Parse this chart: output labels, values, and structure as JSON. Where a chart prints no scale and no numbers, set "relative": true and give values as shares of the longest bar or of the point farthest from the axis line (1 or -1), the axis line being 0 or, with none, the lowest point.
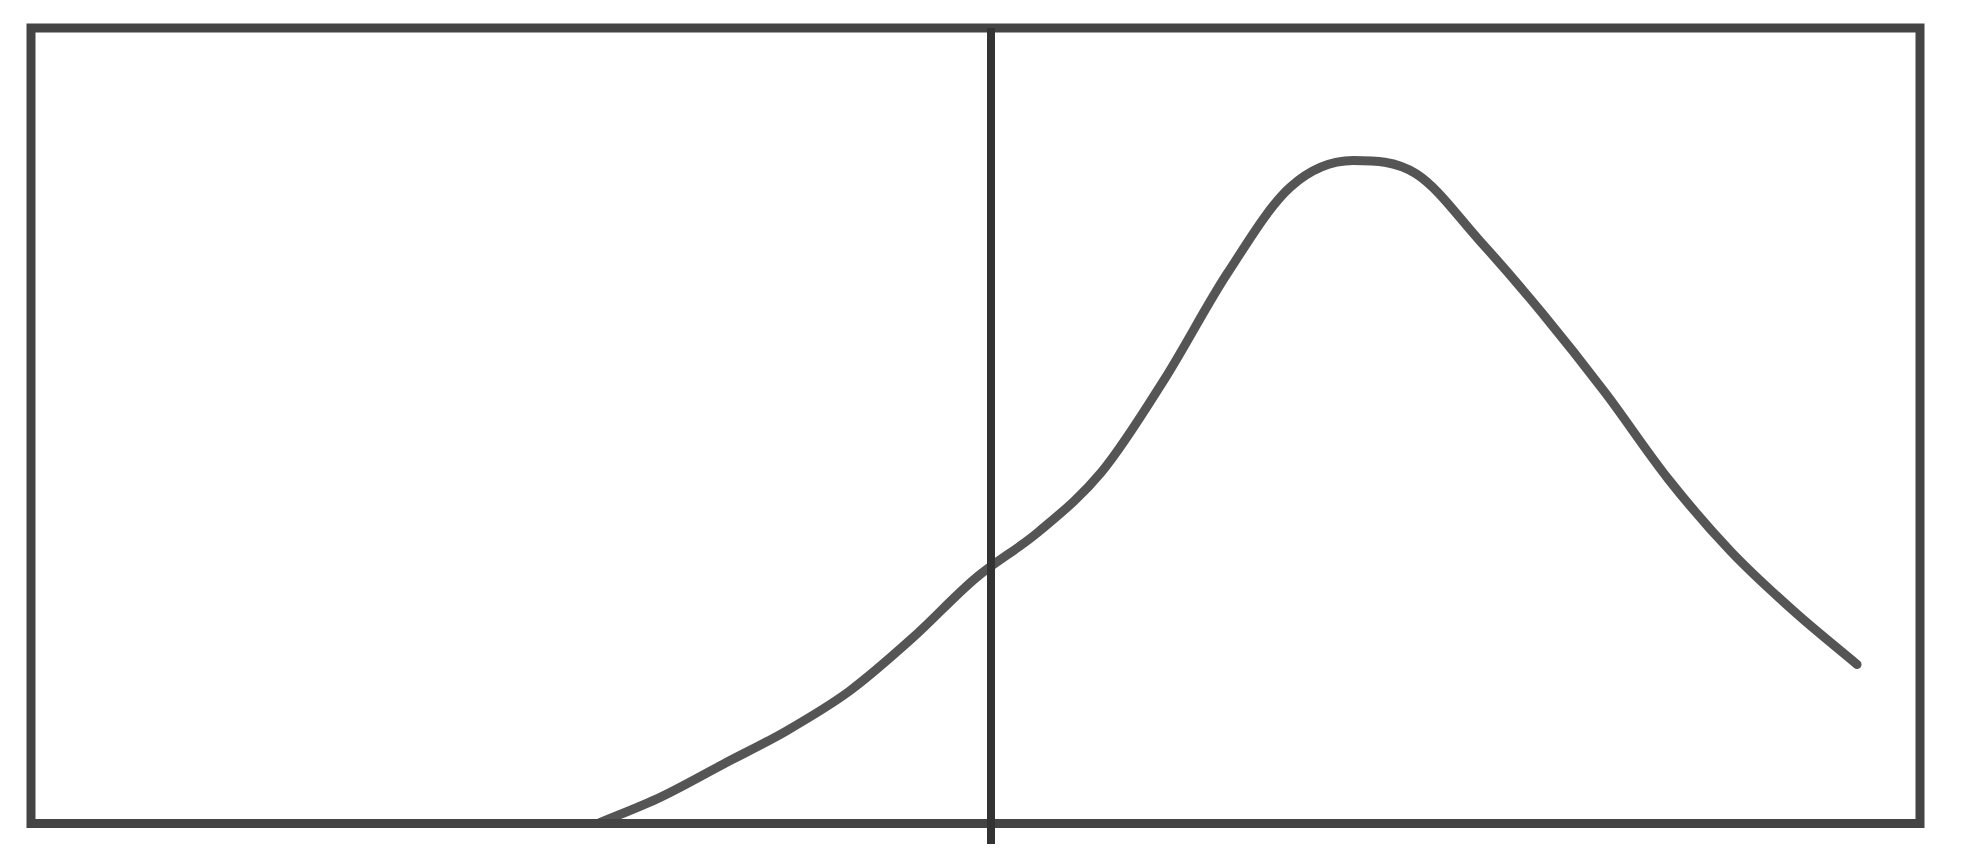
{
  "chart_data": {
    "type": "line",
    "relative": true,
    "categories": [
      null,
      null,
      null,
      null,
      null,
      null,
      null,
      null,
      null,
      null,
      null,
      null,
      null,
      null,
      null,
      null,
      null,
      null,
      null,
      null,
      null,
      null,
      null,
      null,
      null,
      null,
      null,
      null,
      null,
      null,
      null
    ],
    "series": [
      {
        "color": "#555555",
        "values": [
          null,
          null,
          null,
          null,
          null,
          null,
          null,
          null,
          null,
          0,
          0.04,
          0.09,
          0.14,
          0.2,
          0.28,
          0.37,
          0.44,
          0.53,
          0.67,
          0.83,
          0.96,
          1,
          0.98,
          0.88,
          0.77,
          0.65,
          0.52,
          0.41,
          0.32,
          0.24,
          null
        ]
      }
    ],
    "grid": false,
    "legend": false,
    "marker": "none",
    "line_style": "solid"
  }
}
